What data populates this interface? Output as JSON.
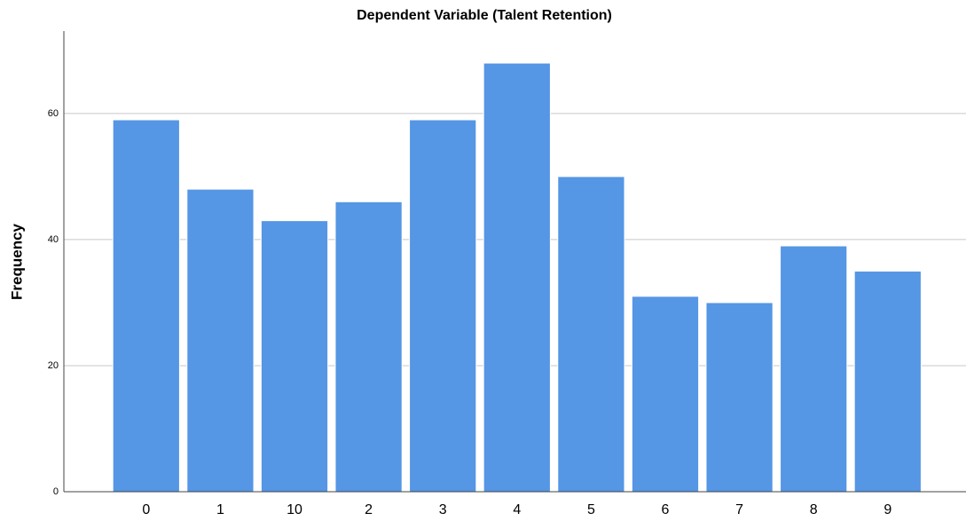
{
  "chart_data": {
    "type": "bar",
    "title": "Dependent Variable (Talent Retention)",
    "y_label": "Frequency",
    "categories": [
      "0",
      "1",
      "10",
      "2",
      "3",
      "4",
      "5",
      "6",
      "7",
      "8",
      "9"
    ],
    "values": [
      59,
      48,
      43,
      46,
      59,
      68,
      50,
      31,
      30,
      39,
      35
    ],
    "color": "#5596e5",
    "ylim": [
      0,
      73.5
    ],
    "yticks": [
      0,
      20,
      40,
      60
    ],
    "grid": true
  }
}
